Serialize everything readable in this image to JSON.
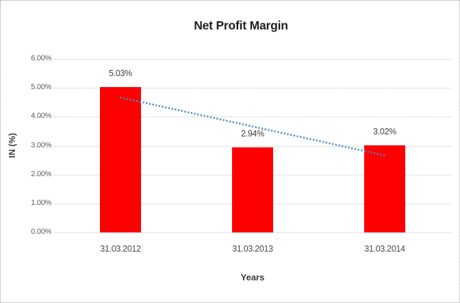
{
  "chart_data": {
    "type": "bar",
    "title": "Net Profit Margin",
    "xlabel": "Years",
    "ylabel": "IN (%)",
    "categories": [
      "31.03.2012",
      "31.03.2013",
      "31.03.2014"
    ],
    "values": [
      5.03,
      2.94,
      3.02
    ],
    "data_labels": [
      "5.03%",
      "2.94%",
      "3.02%"
    ],
    "ylim": [
      0,
      6
    ],
    "ytick_labels": [
      "0.00%",
      "1.00%",
      "2.00%",
      "3.00%",
      "4.00%",
      "5.00%",
      "6.00%"
    ],
    "grid": true,
    "legend": "none",
    "bar_color": "#fe0000",
    "gridline_color": "#c6c6c6",
    "trendline": {
      "type": "linear",
      "style": "dotted",
      "color": "#4a86c8",
      "start_value": 4.67,
      "end_value": 2.66
    }
  }
}
